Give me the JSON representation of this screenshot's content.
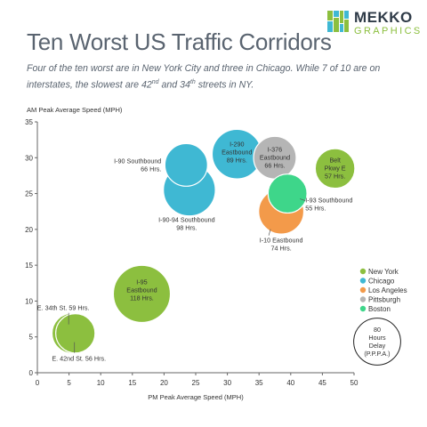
{
  "header": {
    "title": "Ten Worst US Traffic Corridors",
    "subtitle_part1": "Four of the ten worst are in New York City and three in Chicago.  While 7 of 10 are on interstates, the slowest are 42",
    "subtitle_sup1": "nd",
    "subtitle_part2": " and 34",
    "subtitle_sup2": "th",
    "subtitle_part3": " streets in NY."
  },
  "logo": {
    "word1": "MEKKO",
    "word2": "GRAPHICS"
  },
  "colors": {
    "New York": "#8cbf3f",
    "Chicago": "#3fb8d3",
    "Los Angeles": "#f39a4a",
    "Pittsburgh": "#b5b5b5",
    "Boston": "#3ed68a",
    "text": "#5a6470",
    "logo_dark": "#2f3b48"
  },
  "chart_data": {
    "type": "scatter",
    "bubble": true,
    "xlabel": "PM Peak Average Speed (MPH)",
    "ylabel": "AM Peak Average Speed (MPH)",
    "xlim": [
      0,
      50
    ],
    "ylim": [
      0,
      35
    ],
    "xticks": [
      0,
      5,
      10,
      15,
      20,
      25,
      30,
      35,
      40,
      45,
      50
    ],
    "yticks": [
      0,
      5,
      10,
      15,
      20,
      25,
      30,
      35
    ],
    "legend_position": "right",
    "series": [
      {
        "name": "New York",
        "points": [
          {
            "label": "E. 34th St. 59 Hrs.",
            "x": 5.5,
            "y": 5.5,
            "hours": 59
          },
          {
            "label": "E. 42nd St. 56 Hrs.",
            "x": 6.0,
            "y": 5.5,
            "hours": 56
          },
          {
            "label": "I-95 Eastbound 118 Hrs.",
            "x": 16.5,
            "y": 11.0,
            "hours": 118
          },
          {
            "label": "Belt Pkwy E 57 Hrs.",
            "x": 47.0,
            "y": 28.5,
            "hours": 57
          }
        ]
      },
      {
        "name": "Chicago",
        "points": [
          {
            "label": "I-90 Southbound 66 Hrs.",
            "x": 23.5,
            "y": 29.0,
            "hours": 66
          },
          {
            "label": "I-90-94 Southbound 98 Hrs.",
            "x": 24.0,
            "y": 25.5,
            "hours": 98
          },
          {
            "label": "I-290 Eastbound 89 Hrs.",
            "x": 31.5,
            "y": 30.5,
            "hours": 89
          }
        ]
      },
      {
        "name": "Los Angeles",
        "points": [
          {
            "label": "I-10 Eastbound 74 Hrs.",
            "x": 38.5,
            "y": 22.5,
            "hours": 74
          }
        ]
      },
      {
        "name": "Pittsburgh",
        "points": [
          {
            "label": "I-376 Eastbound 66 Hrs.",
            "x": 37.5,
            "y": 30.0,
            "hours": 66
          }
        ]
      },
      {
        "name": "Boston",
        "points": [
          {
            "label": "I-93 Southbound 55 Hrs.",
            "x": 39.5,
            "y": 25.0,
            "hours": 55
          }
        ]
      }
    ],
    "size_legend": {
      "value": 80,
      "label_lines": [
        "80",
        "Hours",
        "Delay",
        "(P.P.P.A.)"
      ]
    }
  }
}
